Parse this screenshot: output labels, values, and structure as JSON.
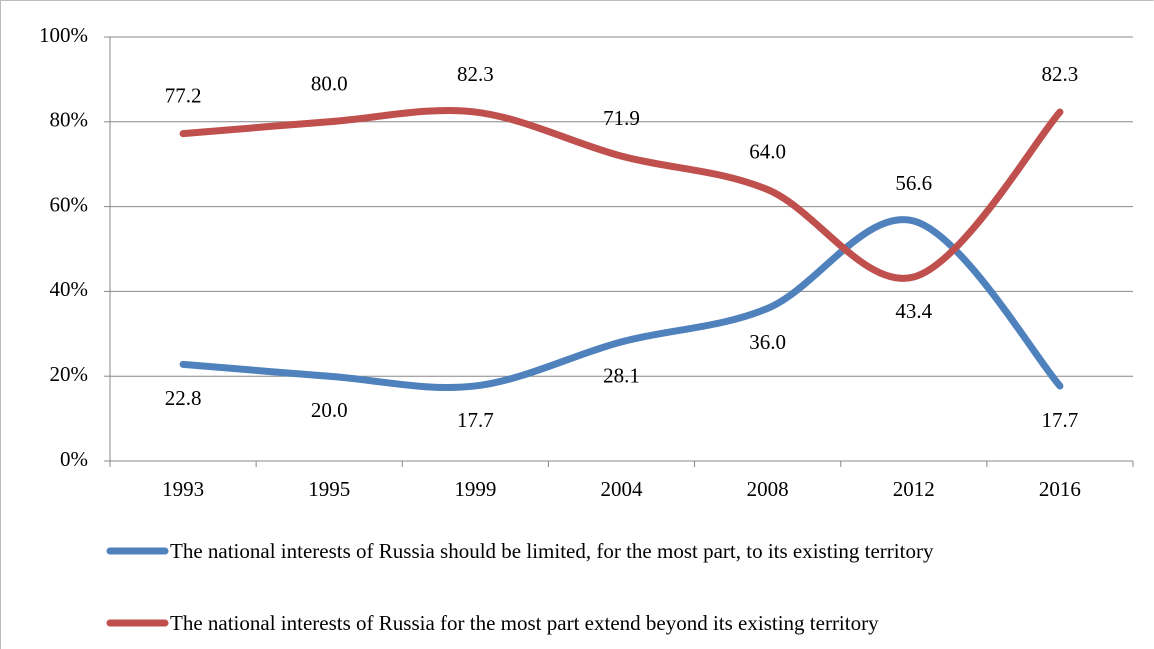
{
  "chart_data": {
    "type": "line",
    "categories": [
      "1993",
      "1995",
      "1999",
      "2004",
      "2008",
      "2012",
      "2016"
    ],
    "series": [
      {
        "name": "The national interests of Russia should be limited, for the most part, to its existing territory",
        "color": "#4f81bd",
        "values": [
          22.8,
          20.0,
          17.7,
          28.1,
          36.0,
          56.6,
          17.7
        ],
        "value_labels": [
          "22.8",
          "20.0",
          "17.7",
          "28.1",
          "36.0",
          "56.6",
          "17.7"
        ]
      },
      {
        "name": "The national interests of Russia for the most part extend beyond its existing territory",
        "color": "#c0504d",
        "values": [
          77.2,
          80.0,
          82.3,
          71.9,
          64.0,
          43.4,
          82.3
        ],
        "value_labels": [
          "77.2",
          "80.0",
          "82.3",
          "71.9",
          "64.0",
          "43.4",
          "82.3"
        ]
      }
    ],
    "ylim": [
      0,
      100
    ],
    "yticks": [
      {
        "value": 0,
        "label": "0%"
      },
      {
        "value": 20,
        "label": "20%"
      },
      {
        "value": 40,
        "label": "40%"
      },
      {
        "value": 60,
        "label": "60%"
      },
      {
        "value": 80,
        "label": "80%"
      },
      {
        "value": 100,
        "label": "100%"
      }
    ],
    "grid": true,
    "legend": "bottom"
  }
}
